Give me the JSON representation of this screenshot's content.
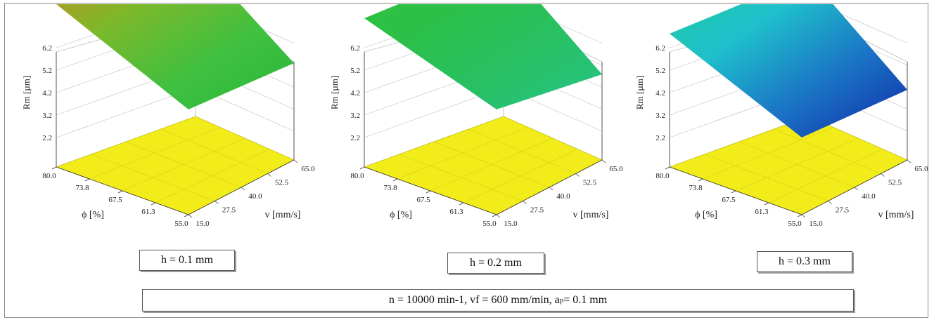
{
  "colors": {
    "base_plane": "#f2ec1a",
    "grid_line": "#bdbdbd",
    "axis_line": "#333333"
  },
  "chart_data": [
    {
      "type": "surface3d",
      "panel_label": "h = 0.1 mm",
      "zlabel": "Rm [µm]",
      "xlabel": "ϕ [%]",
      "ylabel": "v [mm/s]",
      "z_ticks": [
        "6.2",
        "5.2",
        "4.2",
        "3.2",
        "2.2"
      ],
      "x_ticks": [
        "80.0",
        "73.8",
        "67.5",
        "61.3",
        "55.0"
      ],
      "y_ticks": [
        "15.0",
        "27.5",
        "40.0",
        "52.5",
        "65.0"
      ],
      "surface_colors": [
        "#c98a1c",
        "#7db82a",
        "#3fc040",
        "#2ab83a"
      ],
      "grid": true
    },
    {
      "type": "surface3d",
      "panel_label": "h = 0.2 mm",
      "zlabel": "Rm [µm]",
      "xlabel": "ϕ [%]",
      "ylabel": "v [mm/s]",
      "z_ticks": [
        "6.2",
        "5.2",
        "4.2",
        "3.2",
        "2.2"
      ],
      "x_ticks": [
        "80.0",
        "73.8",
        "67.5",
        "61.3",
        "55.0"
      ],
      "y_ticks": [
        "15.0",
        "27.5",
        "40.0",
        "52.5",
        "65.0"
      ],
      "surface_colors": [
        "#2fc23e",
        "#2cc048",
        "#28c064",
        "#24c488"
      ],
      "grid": true
    },
    {
      "type": "surface3d",
      "panel_label": "h = 0.3 mm",
      "zlabel": "Rm [µm]",
      "xlabel": "ϕ [%]",
      "ylabel": "v [mm/s]",
      "z_ticks": [
        "6.2",
        "5.2",
        "4.2",
        "3.2",
        "2.2"
      ],
      "x_ticks": [
        "80.0",
        "73.8",
        "67.5",
        "61.3",
        "55.0"
      ],
      "y_ticks": [
        "15.0",
        "27.5",
        "40.0",
        "52.5",
        "65.0"
      ],
      "surface_colors": [
        "#1ecc9a",
        "#1fc0cc",
        "#1a70c4",
        "#0f2aa8"
      ],
      "grid": true
    }
  ],
  "conditions": {
    "text_main": "n = 10000 min-1, vf = 600 mm/min, a",
    "text_sub": "p",
    "text_end": " = 0.1 mm"
  }
}
